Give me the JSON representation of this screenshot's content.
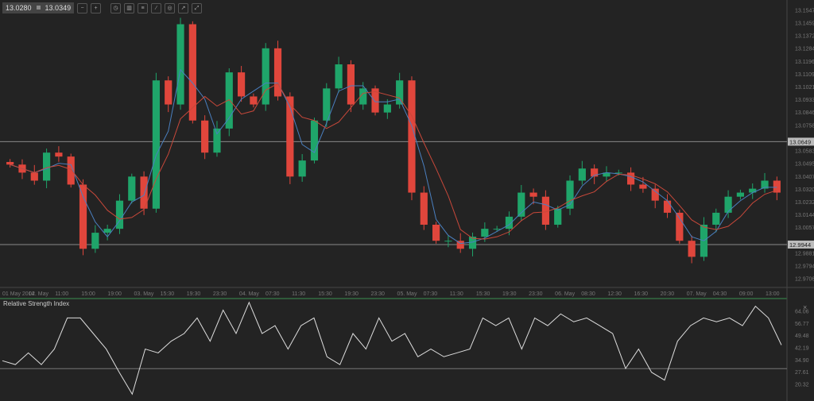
{
  "toolbar": {
    "bid": "13.0280",
    "ask": "13.0349",
    "buttons": [
      "zoom-out",
      "zoom-in",
      "timeframe",
      "chart-type",
      "indicators",
      "drawing",
      "objects",
      "export",
      "expand"
    ]
  },
  "colors": {
    "up": "#1fa56a",
    "down": "#e0463c",
    "ma_fast": "#4a7fbf",
    "ma_slow": "#c8483a",
    "rsi": "#dddddd",
    "level": "#888888"
  },
  "chart_data": {
    "type": "candlestick",
    "price_axis": {
      "ticks": [
        "13.1547",
        "13.1459",
        "13.1372",
        "13.1284",
        "13.1196",
        "13.1109",
        "13.1021",
        "13.0933",
        "13.0846",
        "13.0758",
        "13.0583",
        "13.0495",
        "13.0407",
        "13.0320",
        "13.0232",
        "13.0144",
        "13.0057",
        "12.9881",
        "12.9794",
        "12.9706"
      ],
      "range": [
        12.965,
        13.162
      ]
    },
    "levels": [
      {
        "value": 13.0649,
        "label": "13.0649"
      },
      {
        "value": 12.9944,
        "label": "12.9944"
      }
    ],
    "time_axis": [
      "01 May 2014",
      "02. May",
      "11:00",
      "15:00",
      "19:00",
      "03. May",
      "15:30",
      "19:30",
      "23:30",
      "04. May",
      "07:30",
      "11:30",
      "15:30",
      "19:30",
      "23:30",
      "05. May",
      "07:30",
      "11:30",
      "15:30",
      "19:30",
      "23:30",
      "06. May",
      "08:30",
      "12:30",
      "16:30",
      "20:30",
      "07. May",
      "04:30",
      "09:00",
      "13:00"
    ],
    "open_first": 13.051,
    "closes": [
      13.0492,
      13.0437,
      13.0382,
      13.0574,
      13.0547,
      13.0355,
      12.9915,
      13.0025,
      13.0052,
      13.0245,
      13.041,
      13.019,
      13.1069,
      13.0904,
      13.1454,
      13.0794,
      13.0574,
      13.0739,
      13.1124,
      13.0959,
      13.0904,
      13.1289,
      13.0959,
      13.041,
      13.052,
      13.0794,
      13.1014,
      13.1179,
      13.0904,
      13.1014,
      13.0849,
      13.0904,
      13.1069,
      13.03,
      13.008,
      12.997,
      12.997,
      12.9915,
      12.9998,
      13.0052,
      13.0052,
      13.0135,
      13.03,
      13.0272,
      13.008,
      13.019,
      13.0382,
      13.0465,
      13.041,
      13.0437,
      13.0437,
      13.0355,
      13.0327,
      13.0245,
      13.0162,
      12.997,
      12.986,
      13.008,
      13.0162,
      13.0272,
      13.03,
      13.0327,
      13.0382,
      13.03
    ],
    "rsi": {
      "title": "Relative Strength Index",
      "ticks": [
        "64.06",
        "56.77",
        "49.48",
        "42.19",
        "34.90",
        "27.61",
        "20.32"
      ],
      "range": [
        13,
        70
      ],
      "level": 30,
      "values": [
        34.7,
        32.4,
        39.4,
        32.4,
        41.7,
        60.3,
        60.3,
        51.0,
        41.7,
        27.8,
        14.7,
        41.7,
        39.4,
        46.4,
        51.0,
        60.3,
        46.4,
        65.0,
        51.0,
        69.6,
        51.0,
        55.7,
        41.7,
        55.7,
        60.3,
        37.1,
        32.4,
        51.0,
        41.7,
        60.3,
        46.4,
        51.0,
        37.1,
        41.7,
        37.1,
        39.4,
        41.7,
        60.3,
        55.7,
        60.3,
        41.7,
        60.3,
        55.7,
        62.7,
        58.0,
        60.3,
        55.7,
        51.0,
        30.1,
        41.7,
        27.8,
        23.1,
        46.4,
        55.7,
        60.3,
        58.0,
        60.3,
        55.7,
        67.3,
        60.3,
        44.1
      ]
    }
  }
}
